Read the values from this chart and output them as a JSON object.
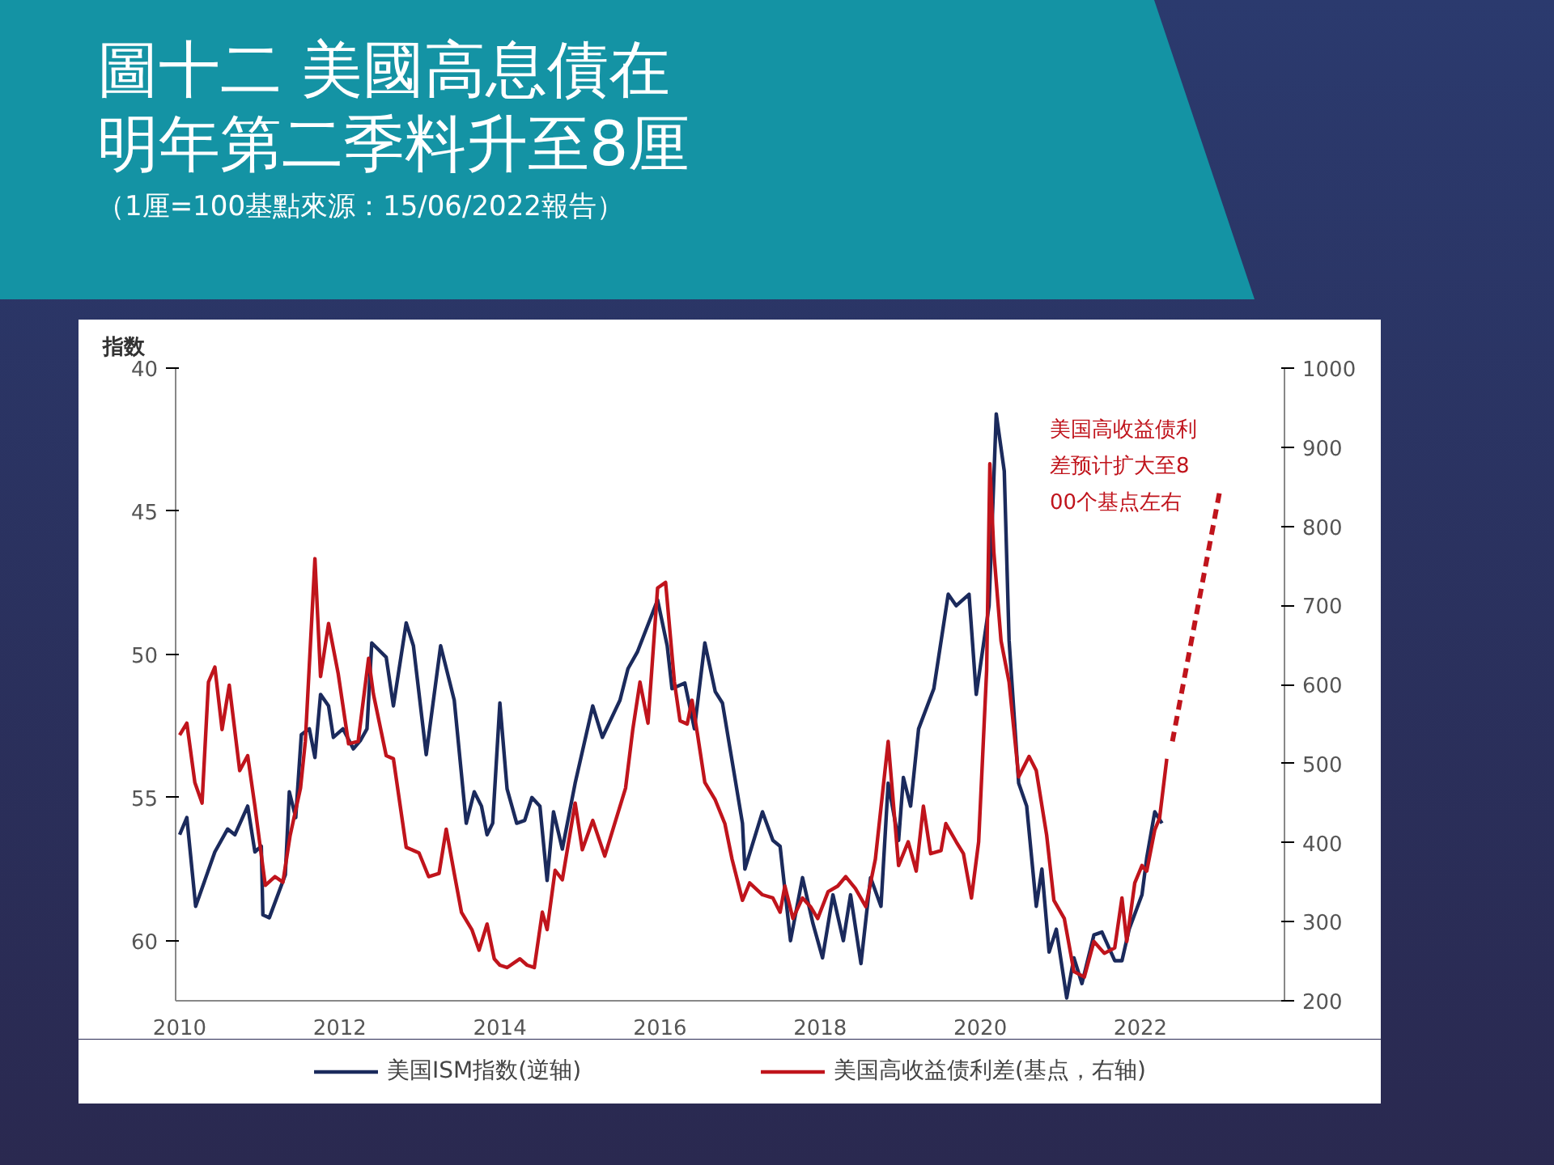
{
  "chart_data": {
    "type": "line",
    "title": "圖十二 美國高息債在明年第二季料升至8厘",
    "subtitle": "（1厘=100基點來源：15/06/2022報告）",
    "ylabel": "指数",
    "xlim": [
      2009.95,
      2023.8
    ],
    "xticks": [
      2010,
      2012,
      2014,
      2016,
      2018,
      2020,
      2022
    ],
    "ylim": [
      62.1,
      40
    ],
    "yticks": [
      40,
      45,
      50,
      55,
      60
    ],
    "y2lim": [
      200,
      1000
    ],
    "y2ticks": [
      200,
      300,
      400,
      500,
      600,
      700,
      800,
      900,
      1000
    ],
    "grid": false,
    "legend": "bottom",
    "marker": "none",
    "annotations": [
      "美国高收益债利差预计扩大至800个基点左右"
    ],
    "series": [
      {
        "name": "美国ISM指数(逆轴)",
        "color": "#1b2a5c",
        "line_style": "solid",
        "x": [
          2010.0,
          2010.09,
          2010.2,
          2010.44,
          2010.6,
          2010.69,
          2010.85,
          2010.94,
          2011.02,
          2011.04,
          2011.12,
          2011.32,
          2011.37,
          2011.45,
          2011.52,
          2011.62,
          2011.69,
          2011.76,
          2011.86,
          2011.92,
          2012.04,
          2012.17,
          2012.26,
          2012.34,
          2012.4,
          2012.58,
          2012.67,
          2012.83,
          2012.92,
          2013.08,
          2013.26,
          2013.43,
          2013.58,
          2013.68,
          2013.77,
          2013.84,
          2013.91,
          2014.0,
          2014.09,
          2014.21,
          2014.31,
          2014.4,
          2014.5,
          2014.59,
          2014.67,
          2014.78,
          2014.94,
          2015.16,
          2015.28,
          2015.5,
          2015.6,
          2015.72,
          2015.97,
          2016.09,
          2016.15,
          2016.31,
          2016.43,
          2016.56,
          2016.69,
          2016.78,
          2017.03,
          2017.06,
          2017.28,
          2017.41,
          2017.5,
          2017.63,
          2017.78,
          2017.91,
          2018.03,
          2018.16,
          2018.29,
          2018.38,
          2018.51,
          2018.63,
          2018.76,
          2018.85,
          2018.98,
          2019.04,
          2019.13,
          2019.23,
          2019.42,
          2019.6,
          2019.7,
          2019.86,
          2019.95,
          2020.11,
          2020.2,
          2020.3,
          2020.36,
          2020.48,
          2020.58,
          2020.7,
          2020.77,
          2020.86,
          2020.95,
          2021.08,
          2021.17,
          2021.27,
          2021.42,
          2021.52,
          2021.68,
          2021.77,
          2021.86,
          2022.02,
          2022.08,
          2022.18,
          2022.27
        ],
        "values": [
          56.3,
          55.7,
          58.8,
          56.9,
          56.1,
          56.3,
          55.3,
          56.9,
          56.7,
          59.1,
          59.2,
          57.7,
          54.8,
          55.7,
          52.8,
          52.6,
          53.6,
          51.4,
          51.8,
          52.9,
          52.6,
          53.3,
          53.0,
          52.6,
          49.6,
          50.1,
          51.8,
          48.9,
          49.7,
          53.5,
          49.7,
          51.6,
          55.9,
          54.8,
          55.3,
          56.3,
          55.9,
          51.7,
          54.7,
          55.9,
          55.8,
          55.0,
          55.3,
          57.9,
          55.5,
          56.8,
          54.5,
          51.8,
          52.9,
          51.6,
          50.5,
          49.9,
          48.1,
          49.7,
          51.2,
          51.0,
          52.6,
          49.6,
          51.3,
          51.7,
          55.9,
          57.5,
          55.5,
          56.5,
          56.7,
          60.0,
          57.8,
          59.4,
          60.6,
          58.4,
          60.0,
          58.4,
          60.8,
          57.8,
          58.8,
          54.5,
          56.5,
          54.3,
          55.3,
          52.6,
          51.2,
          47.9,
          48.3,
          47.9,
          51.4,
          48.3,
          41.6,
          43.6,
          49.5,
          54.5,
          55.3,
          58.8,
          57.5,
          60.4,
          59.6,
          62.0,
          60.6,
          61.5,
          59.8,
          59.7,
          60.7,
          60.7,
          59.6,
          58.4,
          57.1,
          55.5,
          55.9
        ]
      },
      {
        "name": "美国高收益债利差(基点，右轴)",
        "color": "#c0141c",
        "axis": "y2",
        "line_style": "solid",
        "x": [
          2010.0,
          2010.09,
          2010.19,
          2010.28,
          2010.36,
          2010.44,
          2010.53,
          2010.62,
          2010.75,
          2010.85,
          2010.94,
          2011.07,
          2011.19,
          2011.29,
          2011.38,
          2011.51,
          2011.57,
          2011.69,
          2011.76,
          2011.86,
          2011.98,
          2012.11,
          2012.23,
          2012.36,
          2012.42,
          2012.58,
          2012.67,
          2012.83,
          2012.99,
          2013.11,
          2013.24,
          2013.33,
          2013.43,
          2013.52,
          2013.65,
          2013.74,
          2013.84,
          2013.93,
          2014.0,
          2014.09,
          2014.25,
          2014.34,
          2014.43,
          2014.53,
          2014.59,
          2014.69,
          2014.78,
          2014.94,
          2015.03,
          2015.16,
          2015.31,
          2015.57,
          2015.66,
          2015.75,
          2015.85,
          2015.97,
          2016.07,
          2016.18,
          2016.25,
          2016.34,
          2016.4,
          2016.47,
          2016.56,
          2016.69,
          2016.81,
          2016.9,
          2017.03,
          2017.12,
          2017.28,
          2017.41,
          2017.5,
          2017.56,
          2017.66,
          2017.78,
          2017.88,
          2017.97,
          2018.1,
          2018.22,
          2018.32,
          2018.44,
          2018.57,
          2018.69,
          2018.85,
          2018.98,
          2019.1,
          2019.2,
          2019.29,
          2019.38,
          2019.51,
          2019.57,
          2019.7,
          2019.79,
          2019.89,
          2019.98,
          2020.08,
          2020.12,
          2020.17,
          2020.26,
          2020.36,
          2020.48,
          2020.61,
          2020.7,
          2020.83,
          2020.92,
          2021.05,
          2021.17,
          2021.3,
          2021.42,
          2021.55,
          2021.68,
          2021.77,
          2021.83,
          2021.93,
          2022.02,
          2022.08,
          2022.18,
          2022.24,
          2022.33
        ],
        "values": [
          536,
          551,
          476,
          450,
          603,
          622,
          543,
          599,
          491,
          510,
          446,
          346,
          357,
          350,
          409,
          469,
          528,
          759,
          610,
          677,
          614,
          525,
          528,
          633,
          588,
          510,
          506,
          394,
          387,
          357,
          361,
          417,
          361,
          312,
          290,
          264,
          297,
          253,
          245,
          242,
          253,
          245,
          242,
          312,
          290,
          365,
          353,
          450,
          391,
          428,
          383,
          469,
          543,
          603,
          551,
          722,
          729,
          603,
          554,
          550,
          580,
          536,
          476,
          454,
          424,
          379,
          327,
          349,
          334,
          330,
          312,
          345,
          304,
          330,
          319,
          304,
          338,
          345,
          357,
          342,
          319,
          379,
          528,
          371,
          401,
          364,
          446,
          386,
          390,
          424,
          401,
          386,
          330,
          401,
          618,
          879,
          767,
          655,
          603,
          483,
          509,
          491,
          409,
          327,
          304,
          237,
          230,
          275,
          260,
          267,
          330,
          275,
          349,
          371,
          364,
          416,
          431,
          506
        ]
      },
      {
        "color": "#c0141c",
        "axis": "y2",
        "line_style": "dashed",
        "x": [
          2022.4,
          2023.0
        ],
        "values": [
          528,
          849
        ]
      }
    ]
  }
}
